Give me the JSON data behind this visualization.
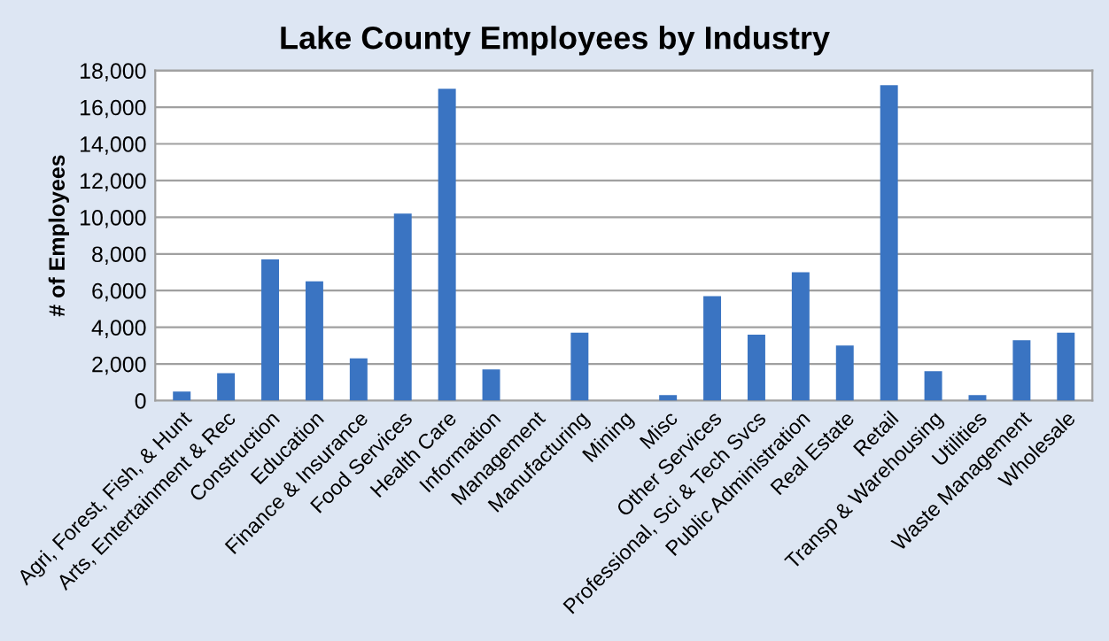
{
  "chart_data": {
    "type": "bar",
    "title": "Lake County Employees by Industry",
    "ylabel": "# of Employees",
    "categories": [
      "Agri, Forest, Fish, & Hunt",
      "Arts, Entertainment & Rec",
      "Construction",
      "Education",
      "Finance & Insurance",
      "Food Services",
      "Health Care",
      "Information",
      "Management",
      "Manufacturing",
      "Mining",
      "Misc",
      "Other Services",
      "Professional, Sci & Tech Svcs",
      "Public Administration",
      "Real Estate",
      "Retail",
      "Transp & Warehousing",
      "Utilities",
      "Waste Management",
      "Wholesale"
    ],
    "values": [
      500,
      1500,
      7700,
      6500,
      2300,
      10200,
      17000,
      1700,
      0,
      3700,
      0,
      300,
      5700,
      3600,
      7000,
      3000,
      17200,
      1600,
      300,
      3300,
      3700
    ],
    "color": "#3a74c2",
    "ylim": [
      0,
      18000
    ],
    "yticks": [
      {
        "value": 0,
        "label": "0"
      },
      {
        "value": 2000,
        "label": "2,000"
      },
      {
        "value": 4000,
        "label": "4,000"
      },
      {
        "value": 6000,
        "label": "6,000"
      },
      {
        "value": 8000,
        "label": "8,000"
      },
      {
        "value": 10000,
        "label": "10,000"
      },
      {
        "value": 12000,
        "label": "12,000"
      },
      {
        "value": 14000,
        "label": "14,000"
      },
      {
        "value": 16000,
        "label": "16,000"
      },
      {
        "value": 18000,
        "label": "18,000"
      }
    ],
    "grid": "y",
    "legend": false
  }
}
